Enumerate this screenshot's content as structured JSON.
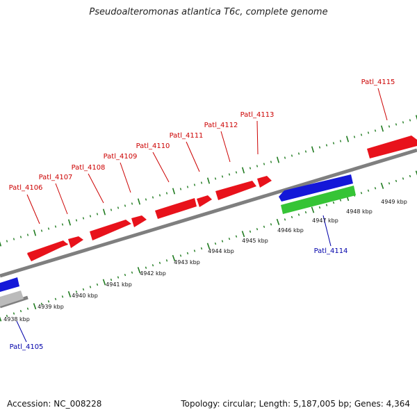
{
  "title": "Pseudoalteromonas atlantica T6c, complete genome",
  "footer": {
    "accession": "Accession: NC_008228",
    "summary": "Topology: circular; Length: 5,187,005 bp; Genes: 4,364"
  },
  "colors": {
    "forward_gene": "#e8121b",
    "reverse_gene": "#1418d8",
    "other_gene": "#36c436",
    "other_gene_2": "#bbbbbb",
    "backbone": "#7f7f7f",
    "ticks": "#1e7a1e",
    "top_label": "#cc0000",
    "bottom_label": "#0000aa"
  },
  "scale": {
    "unit": "kbp",
    "labels": [
      "4938 kbp",
      "4939 kbp",
      "4940 kbp",
      "4941 kbp",
      "4942 kbp",
      "4943 kbp",
      "4944 kbp",
      "4945 kbp",
      "4946 kbp",
      "4947 kbp",
      "4948 kbp",
      "4949 kbp"
    ]
  },
  "genes_top": [
    "Patl_4106",
    "Patl_4107",
    "Patl_4108",
    "Patl_4109",
    "Patl_4110",
    "Patl_4111",
    "Patl_4112",
    "Patl_4113",
    "Patl_4115"
  ],
  "genes_bottom": [
    "Patl_4105",
    "Patl_4114"
  ]
}
